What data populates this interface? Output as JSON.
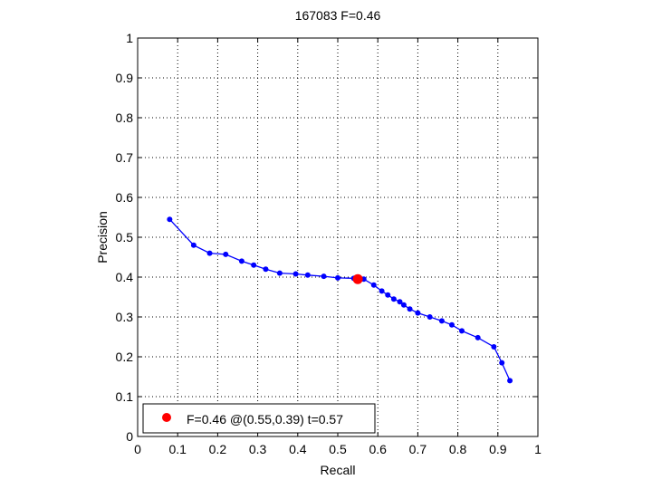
{
  "chart_data": {
    "type": "line",
    "title": "167083 F=0.46",
    "xlabel": "Recall",
    "ylabel": "Precision",
    "xlim": [
      0,
      1
    ],
    "ylim": [
      0,
      1
    ],
    "grid": true,
    "x_ticks": [
      "0",
      "0.1",
      "0.2",
      "0.3",
      "0.4",
      "0.5",
      "0.6",
      "0.7",
      "0.8",
      "0.9",
      "1"
    ],
    "y_ticks": [
      "0",
      "0.1",
      "0.2",
      "0.3",
      "0.4",
      "0.5",
      "0.6",
      "0.7",
      "0.8",
      "0.9",
      "1"
    ],
    "series": [
      {
        "color": "#0000ff",
        "x": [
          0.08,
          0.14,
          0.18,
          0.22,
          0.26,
          0.29,
          0.32,
          0.355,
          0.395,
          0.425,
          0.465,
          0.5,
          0.54,
          0.565,
          0.59,
          0.61,
          0.625,
          0.64,
          0.655,
          0.665,
          0.68,
          0.7,
          0.73,
          0.76,
          0.785,
          0.81,
          0.85,
          0.89,
          0.91,
          0.93
        ],
        "y": [
          0.545,
          0.48,
          0.46,
          0.457,
          0.44,
          0.43,
          0.42,
          0.41,
          0.408,
          0.405,
          0.402,
          0.398,
          0.397,
          0.395,
          0.38,
          0.365,
          0.355,
          0.345,
          0.338,
          0.33,
          0.32,
          0.31,
          0.3,
          0.29,
          0.28,
          0.265,
          0.248,
          0.225,
          0.185,
          0.14
        ]
      }
    ],
    "best_point": {
      "x": 0.55,
      "y": 0.395,
      "color": "#ff0000"
    },
    "legend": {
      "label": "F=0.46 @(0.55,0.39) t=0.57",
      "placement": "bottom-left"
    }
  }
}
